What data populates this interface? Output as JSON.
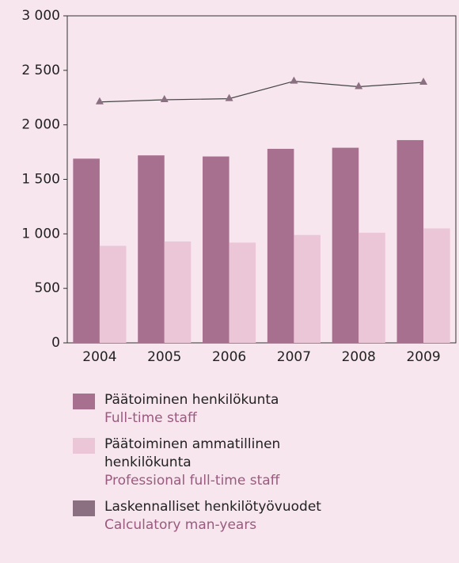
{
  "chart_data": {
    "type": "bar",
    "categories": [
      "2004",
      "2005",
      "2006",
      "2007",
      "2008",
      "2009"
    ],
    "series": [
      {
        "name": "Päätoiminen henkilökunta",
        "name_en": "Full-time staff",
        "color": "#a8708f",
        "type": "bar",
        "values": [
          1690,
          1720,
          1710,
          1780,
          1790,
          1860
        ]
      },
      {
        "name": "Päätoiminen ammatillinen henkilökunta",
        "name_en": "Professional full-time staff",
        "color": "#ebc6d7",
        "type": "bar",
        "values": [
          890,
          930,
          920,
          990,
          1010,
          1050
        ]
      },
      {
        "name": "Laskennalliset henkilötyövuodet",
        "name_en": "Calculatory man-years",
        "color": "#8a7080",
        "type": "line",
        "values": [
          2210,
          2230,
          2240,
          2400,
          2350,
          2390
        ]
      }
    ],
    "ylim": [
      0,
      3000
    ],
    "yticks": [
      0,
      500,
      {
        "value": 1000,
        "label": "1 000"
      },
      {
        "value": 1500,
        "label": "1 500"
      },
      {
        "value": 2000,
        "label": "2 000"
      },
      {
        "value": 2500,
        "label": "2 500"
      },
      {
        "value": 3000,
        "label": "3 000"
      }
    ],
    "grid": false
  }
}
